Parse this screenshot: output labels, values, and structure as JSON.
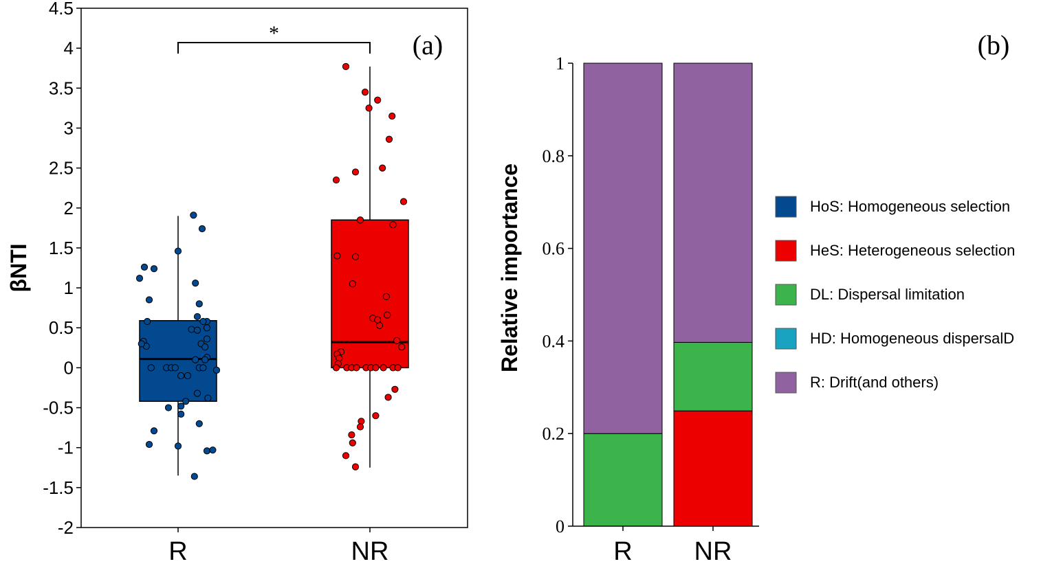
{
  "chart_data": [
    {
      "type": "box",
      "panel_label": "(a)",
      "ylabel": "βNTI",
      "xlabel": "",
      "ylim": [
        -2,
        4.5
      ],
      "yticks": [
        4.5,
        4,
        3.5,
        3,
        2.5,
        2,
        1.5,
        1,
        0.5,
        0,
        -0.5,
        -1,
        -1.5,
        -2
      ],
      "ytick_labels": [
        "4.5",
        "4",
        "3.5",
        "3",
        "2.5",
        "2",
        "1.5",
        "1",
        "0.5",
        "0",
        "-0.5",
        "-1",
        "-1.5",
        "-2"
      ],
      "significance": {
        "label": "*",
        "between": [
          "R",
          "NR"
        ],
        "y": 4.07
      },
      "groups": [
        {
          "name": "R",
          "color": "#024990",
          "whisker_low": -1.35,
          "q1": -0.42,
          "median": 0.11,
          "q3": 0.59,
          "whisker_high": 1.9,
          "points": [
            [
              -0.4,
              1.12
            ],
            [
              -0.35,
              1.26
            ],
            [
              -0.25,
              1.24
            ],
            [
              -0.3,
              0.85
            ],
            [
              -0.32,
              0.58
            ],
            [
              -0.36,
              0.33
            ],
            [
              -0.33,
              0.27
            ],
            [
              -0.38,
              0.3
            ],
            [
              -0.28,
              0.0
            ],
            [
              -0.12,
              0.0
            ],
            [
              -0.07,
              0.0
            ],
            [
              -0.03,
              0.0
            ],
            [
              0.0,
              1.46
            ],
            [
              0.16,
              1.91
            ],
            [
              0.25,
              1.74
            ],
            [
              0.18,
              1.06
            ],
            [
              0.22,
              0.8
            ],
            [
              0.2,
              0.64
            ],
            [
              0.3,
              0.58
            ],
            [
              0.26,
              0.58
            ],
            [
              0.14,
              0.48
            ],
            [
              0.2,
              0.47
            ],
            [
              0.3,
              0.5
            ],
            [
              0.24,
              0.3
            ],
            [
              0.3,
              0.36
            ],
            [
              0.28,
              0.26
            ],
            [
              0.3,
              0.13
            ],
            [
              0.18,
              0.1
            ],
            [
              0.28,
              0.1
            ],
            [
              0.22,
              0.0
            ],
            [
              0.26,
              0.0
            ],
            [
              0.4,
              -0.03
            ],
            [
              0.1,
              -0.1
            ],
            [
              0.03,
              -0.1
            ],
            [
              0.2,
              -0.32
            ],
            [
              0.31,
              -0.38
            ],
            [
              0.08,
              -0.42
            ],
            [
              -0.1,
              -0.5
            ],
            [
              0.03,
              -0.48
            ],
            [
              0.03,
              -0.58
            ],
            [
              0.22,
              -0.7
            ],
            [
              -0.25,
              -0.79
            ],
            [
              -0.3,
              -0.96
            ],
            [
              0.0,
              -0.98
            ],
            [
              0.3,
              -1.04
            ],
            [
              0.36,
              -1.03
            ],
            [
              0.17,
              -1.36
            ]
          ]
        },
        {
          "name": "NR",
          "color": "#ec0000",
          "whisker_low": -1.25,
          "q1": 0.0,
          "median": 0.32,
          "q3": 1.85,
          "whisker_high": 3.77,
          "points": [
            [
              -0.25,
              3.77
            ],
            [
              -0.05,
              3.45
            ],
            [
              0.08,
              3.35
            ],
            [
              -0.01,
              3.25
            ],
            [
              0.23,
              3.15
            ],
            [
              0.2,
              2.86
            ],
            [
              0.13,
              2.5
            ],
            [
              -0.15,
              2.45
            ],
            [
              -0.35,
              2.35
            ],
            [
              0.35,
              2.08
            ],
            [
              -0.1,
              1.85
            ],
            [
              0.24,
              1.79
            ],
            [
              -0.34,
              1.4
            ],
            [
              -0.15,
              1.39
            ],
            [
              -0.18,
              1.05
            ],
            [
              0.17,
              0.89
            ],
            [
              0.18,
              0.66
            ],
            [
              0.03,
              0.62
            ],
            [
              0.1,
              0.53
            ],
            [
              0.08,
              0.6
            ],
            [
              0.28,
              0.34
            ],
            [
              0.33,
              0.26
            ],
            [
              -0.3,
              0.2
            ],
            [
              -0.34,
              0.17
            ],
            [
              -0.32,
              0.12
            ],
            [
              -0.33,
              0.05
            ],
            [
              -0.35,
              0.0
            ],
            [
              -0.24,
              0.0
            ],
            [
              -0.19,
              0.0
            ],
            [
              -0.14,
              0.0
            ],
            [
              -0.04,
              0.0
            ],
            [
              0.01,
              0.0
            ],
            [
              0.06,
              0.0
            ],
            [
              0.14,
              0.0
            ],
            [
              0.24,
              0.0
            ],
            [
              0.29,
              0.0
            ],
            [
              0.26,
              -0.27
            ],
            [
              0.19,
              -0.37
            ],
            [
              0.06,
              -0.6
            ],
            [
              -0.09,
              -0.67
            ],
            [
              -0.1,
              -0.74
            ],
            [
              -0.19,
              -0.84
            ],
            [
              -0.18,
              -0.94
            ],
            [
              -0.25,
              -1.1
            ],
            [
              -0.15,
              -1.24
            ]
          ]
        }
      ]
    },
    {
      "type": "stacked_bar",
      "panel_label": "(b)",
      "ylabel": "Relative importance",
      "xlabel": "",
      "ylim": [
        0,
        1
      ],
      "yticks": [
        0,
        0.2,
        0.4,
        0.6,
        0.8,
        1
      ],
      "ytick_labels": [
        "0",
        "0.2",
        "0.4",
        "0.6",
        "0.8",
        "1"
      ],
      "categories": [
        "R",
        "NR"
      ],
      "series": [
        {
          "name": "HoS: Homogeneous selection",
          "color": "#024990",
          "values": [
            0,
            0
          ]
        },
        {
          "name": "HeS: Heterogeneous selection",
          "color": "#ec0000",
          "values": [
            0,
            0.249
          ]
        },
        {
          "name": "DL: Dispersal limitation",
          "color": "#3cb44b",
          "values": [
            0.2,
            0.148
          ]
        },
        {
          "name": "HD: Homogeneous dispersalD",
          "color": "#1aa3c0",
          "values": [
            0,
            0
          ]
        },
        {
          "name": "R: Drift(and others)",
          "color": "#90629f",
          "values": [
            0.8,
            0.603
          ]
        }
      ],
      "legend_position": "right"
    }
  ]
}
